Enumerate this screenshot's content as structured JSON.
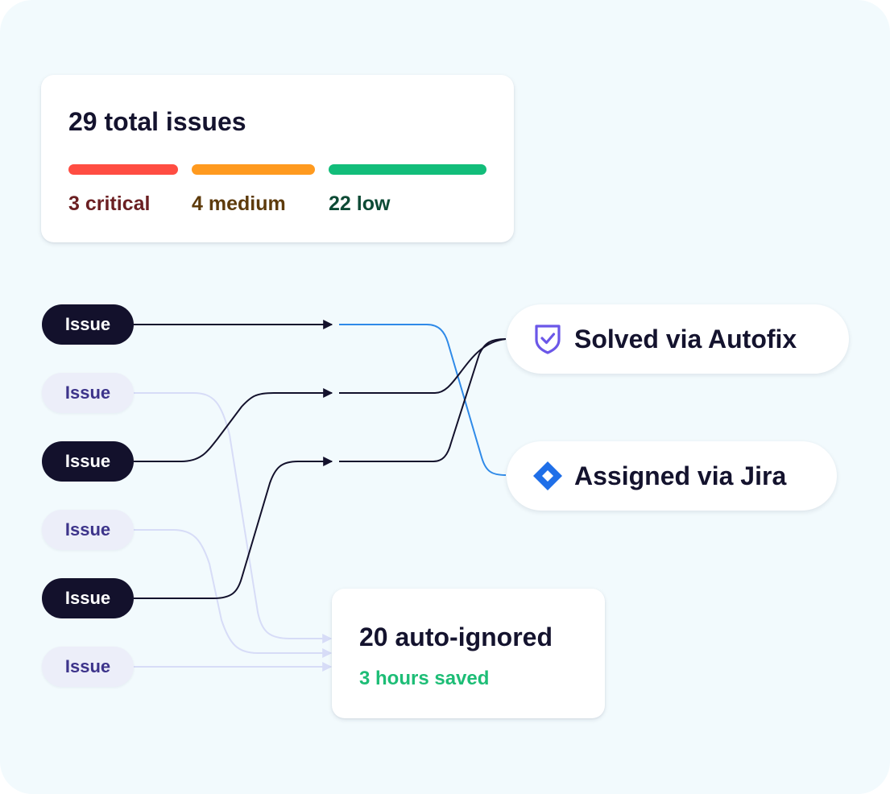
{
  "summary": {
    "title": "29 total issues",
    "severities": [
      {
        "label": "3 critical",
        "bar_color": "#ff4d42",
        "text_color": "#6b1f22"
      },
      {
        "label": "4 medium",
        "bar_color": "#ff9a1f",
        "text_color": "#5e3b0c"
      },
      {
        "label": "22 low",
        "bar_color": "#12bd7a",
        "text_color": "#0d4a35"
      }
    ]
  },
  "issues": [
    {
      "label": "Issue",
      "style": "dark"
    },
    {
      "label": "Issue",
      "style": "light"
    },
    {
      "label": "Issue",
      "style": "dark"
    },
    {
      "label": "Issue",
      "style": "light"
    },
    {
      "label": "Issue",
      "style": "dark"
    },
    {
      "label": "Issue",
      "style": "light"
    }
  ],
  "outcomes": {
    "autofix": {
      "label": "Solved via Autofix",
      "icon": "shield-check-icon",
      "icon_color": "#6b57e8"
    },
    "jira": {
      "label": "Assigned via Jira",
      "icon": "jira-diamond-icon",
      "icon_color": "#1f6fe8"
    }
  },
  "ignored": {
    "title": "20 auto-ignored",
    "subtitle": "3 hours saved",
    "subtitle_color": "#1dbd76"
  },
  "colors": {
    "background": "#f2fafd",
    "dark_pill": "#13112c",
    "light_pill": "#eceef9",
    "light_pill_text": "#3d348b",
    "flow_dark": "#13112c",
    "flow_blue": "#2f8ae8",
    "flow_light": "#d7dcf7"
  }
}
